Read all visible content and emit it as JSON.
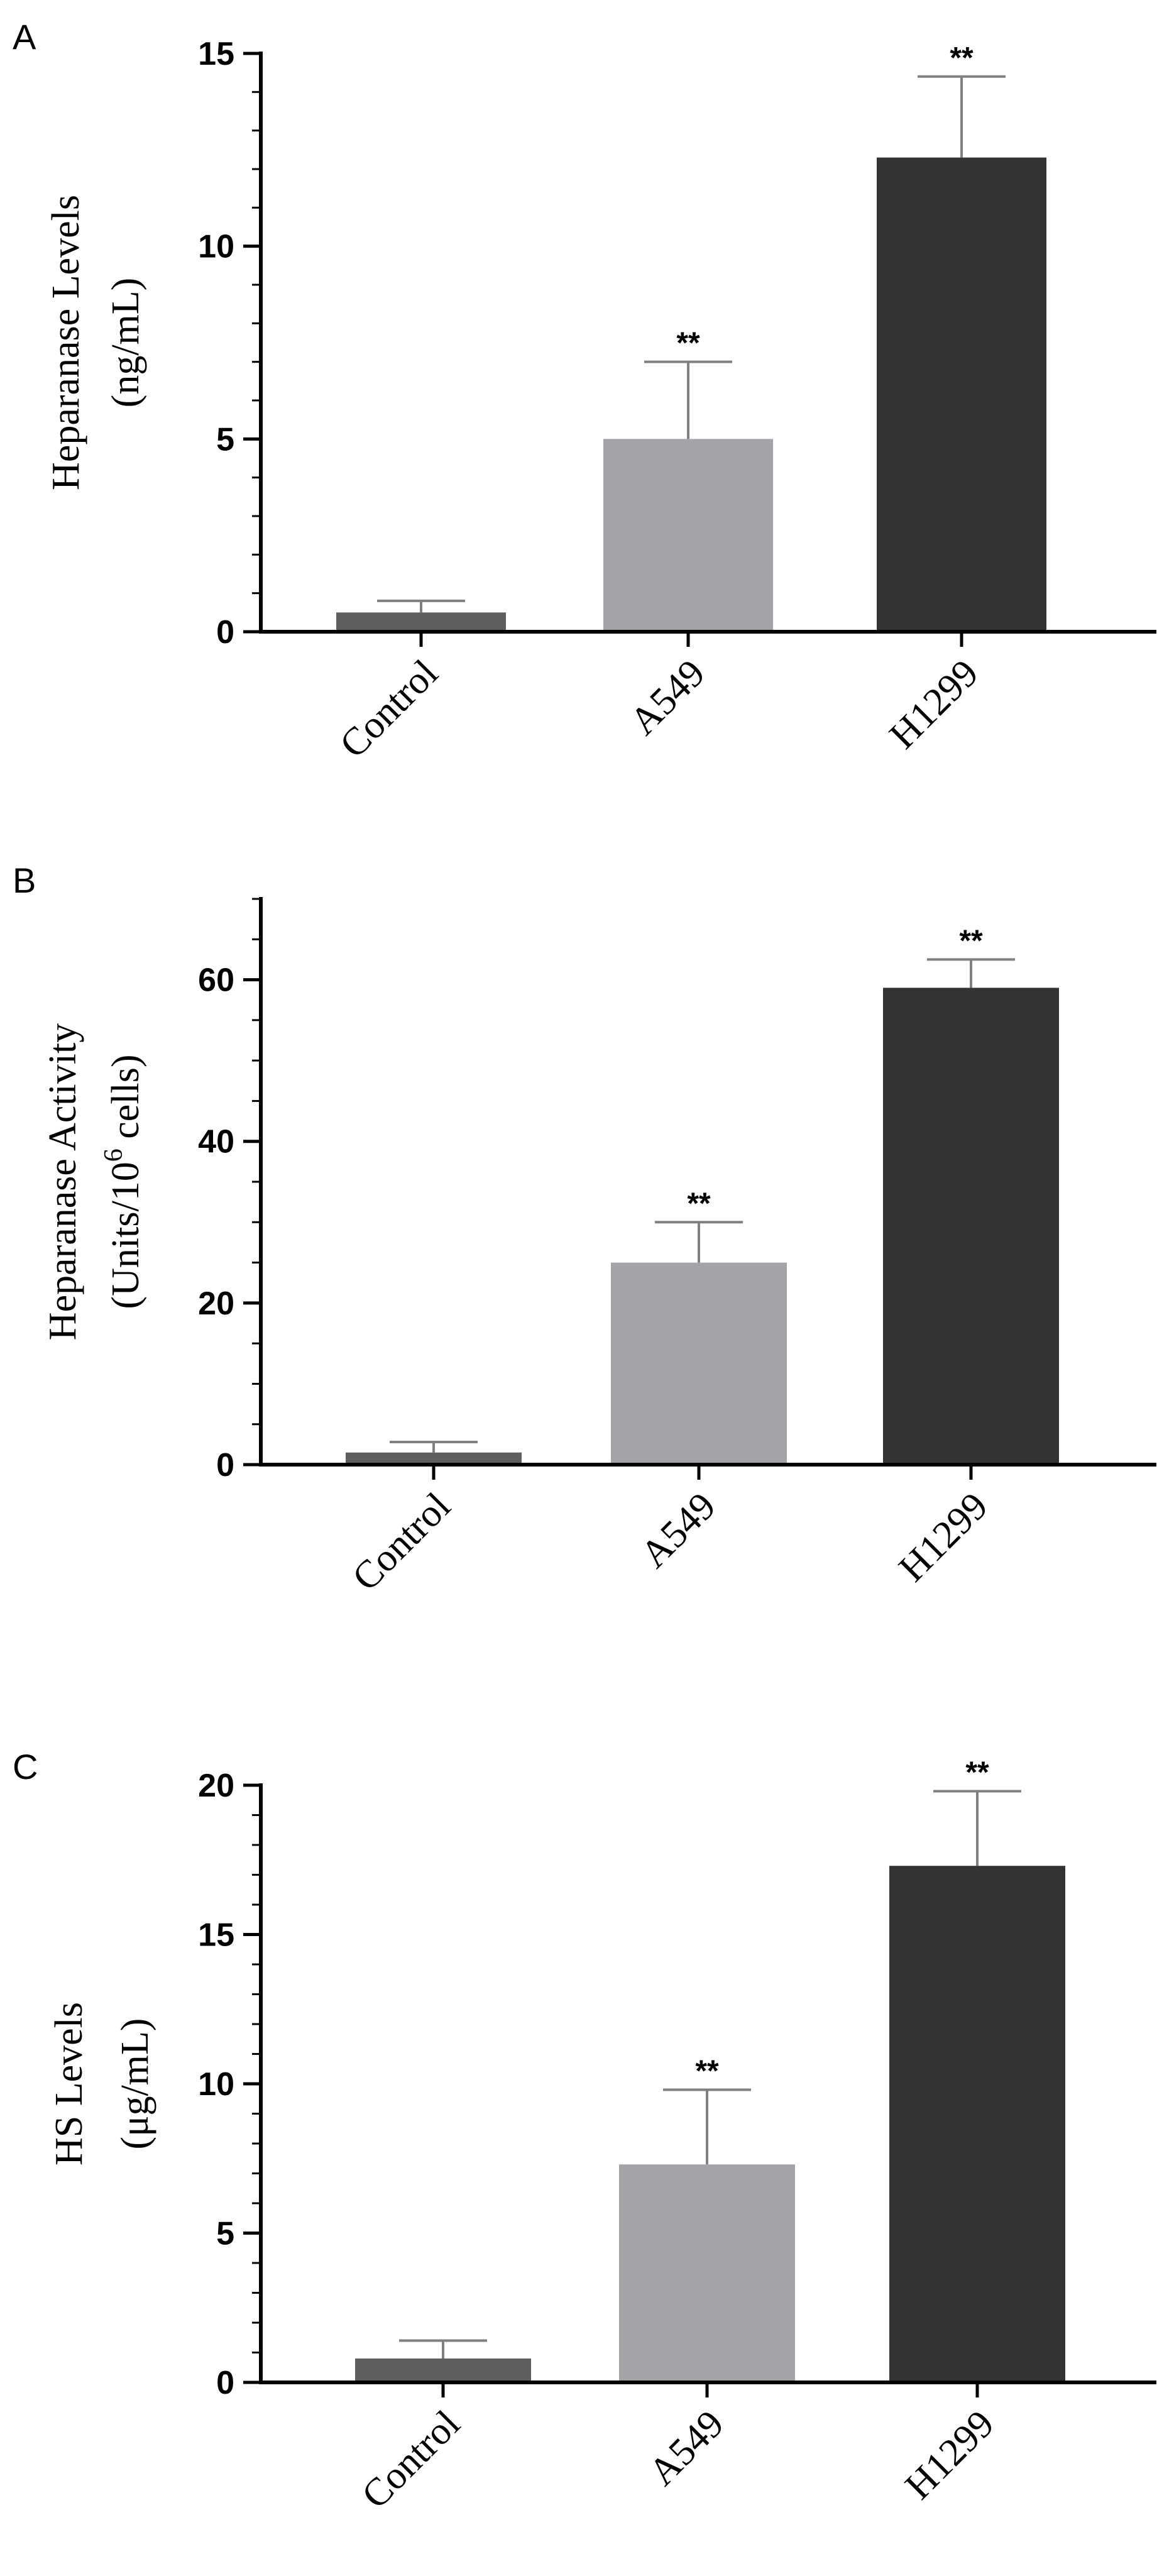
{
  "colors": {
    "control": "#5f5f5f",
    "a549": "#a3a3a8",
    "h1299": "#333333",
    "axis": "#000000",
    "error": "#808080"
  },
  "chart_data": [
    {
      "type": "bar",
      "panel": "A",
      "ylabel_lines": [
        "Heparanase Levels",
        "(ng/mL)"
      ],
      "categories": [
        "Control",
        "A549",
        "H1299"
      ],
      "values": [
        0.5,
        5.0,
        12.3
      ],
      "errors": [
        0.3,
        2.0,
        2.1
      ],
      "significance": [
        "",
        "**",
        "**"
      ],
      "ylim": [
        0,
        15
      ],
      "yticks": [
        0,
        5,
        10,
        15
      ],
      "minor_step": 1
    },
    {
      "type": "bar",
      "panel": "B",
      "ylabel_lines": [
        "Heparanase Activity",
        "(Units/10",
        "6",
        " cells)"
      ],
      "categories": [
        "Control",
        "A549",
        "H1299"
      ],
      "values": [
        1.5,
        25.0,
        59.0
      ],
      "errors": [
        1.3,
        5.0,
        3.5
      ],
      "significance": [
        "",
        "**",
        "**"
      ],
      "ylim": [
        0,
        70
      ],
      "yticks": [
        0,
        20,
        40,
        60
      ],
      "minor_step": 5
    },
    {
      "type": "bar",
      "panel": "C",
      "ylabel_lines": [
        "HS Levels",
        "(μg/mL)"
      ],
      "categories": [
        "Control",
        "A549",
        "H1299"
      ],
      "values": [
        0.8,
        7.3,
        17.3
      ],
      "errors": [
        0.6,
        2.5,
        2.5
      ],
      "significance": [
        "",
        "**",
        "**"
      ],
      "ylim": [
        0,
        20
      ],
      "yticks": [
        0,
        5,
        10,
        15,
        20
      ],
      "minor_step": 1
    }
  ]
}
